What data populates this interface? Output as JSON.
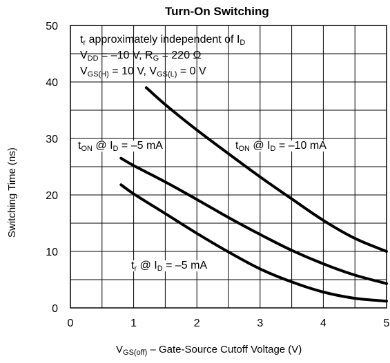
{
  "chart_data": {
    "type": "line",
    "title": "Turn-On Switching",
    "ylabel": "Switching Time (ns)",
    "xlabel": {
      "pre": "V",
      "sub": "GS(off)",
      "post": " – Gate-Source Cutoff Voltage (V)"
    },
    "xlim": [
      0,
      5
    ],
    "ylim": [
      0,
      50
    ],
    "xticks": [
      0,
      1,
      2,
      3,
      4,
      5
    ],
    "yticks": [
      0,
      10,
      20,
      30,
      40,
      50
    ],
    "grid": true,
    "conditions": {
      "line1": {
        "pre": "t",
        "sub1": "r",
        "mid": " approximately independent of I",
        "sub2": "D"
      },
      "line2": {
        "p1": "V",
        "s1": "DD",
        "p2": " = –10 V, R",
        "s2": "G",
        "p3": " = 220 Ω"
      },
      "line3": {
        "p1": "V",
        "s1": "GS(H)",
        "p2": " = 10 V, V",
        "s2": "GS(L)",
        "p3": " = 0 V"
      }
    },
    "annotations": [
      {
        "pre": "t",
        "sub1": "ON",
        "mid": " @ I",
        "sub2": "D",
        "post": " = –5 mA"
      },
      {
        "pre": "t",
        "sub1": "ON",
        "mid": " @ I",
        "sub2": "D",
        "post": " = –10 mA"
      },
      {
        "pre": "t",
        "sub1": "r",
        "mid": " @ I",
        "sub2": "D",
        "post": " = –5 mA"
      }
    ],
    "series": [
      {
        "x": [
          1.2,
          1.5,
          2.0,
          2.5,
          3.0,
          3.5,
          4.0,
          4.5,
          5.0
        ],
        "y": [
          39.0,
          36.0,
          31.5,
          27.3,
          23.2,
          19.3,
          15.5,
          12.3,
          10.0
        ]
      },
      {
        "x": [
          0.8,
          1.0,
          1.5,
          2.0,
          2.5,
          3.0,
          3.5,
          4.0,
          4.5,
          5.0
        ],
        "y": [
          26.5,
          25.2,
          22.3,
          19.2,
          16.0,
          13.0,
          10.2,
          7.8,
          5.8,
          4.3
        ]
      },
      {
        "x": [
          0.8,
          1.0,
          1.5,
          2.0,
          2.5,
          3.0,
          3.5,
          4.0,
          4.5,
          5.0
        ],
        "y": [
          21.8,
          20.2,
          16.7,
          13.2,
          9.9,
          6.9,
          4.6,
          2.8,
          1.7,
          1.2
        ]
      }
    ]
  }
}
